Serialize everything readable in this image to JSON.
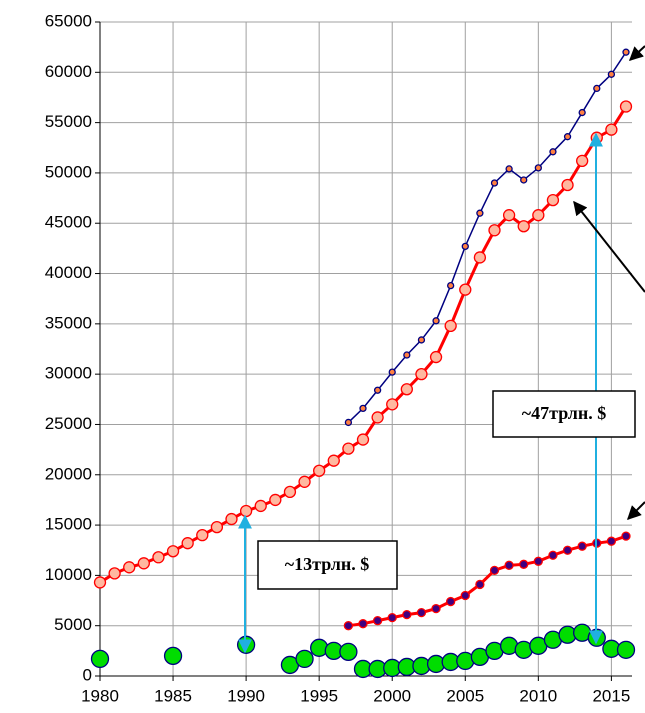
{
  "chart_data": {
    "type": "line",
    "xlim": [
      1980,
      2016
    ],
    "ylim": [
      0,
      65000
    ],
    "xticks": [
      1980,
      1985,
      1990,
      1995,
      2000,
      2005,
      2010,
      2015
    ],
    "yticks": [
      0,
      5000,
      10000,
      15000,
      20000,
      25000,
      30000,
      35000,
      40000,
      45000,
      50000,
      55000,
      60000,
      65000
    ],
    "grid": true,
    "annotations": [
      "~13трлн. $",
      "~47трлн. $"
    ],
    "series": [
      {
        "color": "#ff0000",
        "marker_color": "#ffb8a0",
        "x": [
          1980,
          1981,
          1982,
          1983,
          1984,
          1985,
          1986,
          1987,
          1988,
          1989,
          1990,
          1991,
          1992,
          1993,
          1994,
          1995,
          1996,
          1997,
          1998,
          1999,
          2000,
          2001,
          2002,
          2003,
          2004,
          2005,
          2006,
          2007,
          2008,
          2009,
          2010,
          2011,
          2012,
          2013,
          2014,
          2015,
          2016
        ],
        "values": [
          9300,
          10200,
          10800,
          11200,
          11800,
          12400,
          13200,
          14000,
          14800,
          15600,
          16400,
          16900,
          17500,
          18300,
          19300,
          20400,
          21400,
          22600,
          23500,
          25700,
          27000,
          28500,
          30000,
          31700,
          34800,
          38400,
          41600,
          44300,
          45800,
          44700,
          45800,
          47300,
          48800,
          51200,
          53500,
          54300,
          56600
        ]
      },
      {
        "color": "#000080",
        "marker_color": "#ff8040",
        "x": [
          1997,
          1998,
          1999,
          2000,
          2001,
          2002,
          2003,
          2004,
          2005,
          2006,
          2007,
          2008,
          2009,
          2010,
          2011,
          2012,
          2013,
          2014,
          2015,
          2016
        ],
        "values": [
          25200,
          26600,
          28400,
          30200,
          31900,
          33400,
          35300,
          38800,
          42700,
          46000,
          49000,
          50400,
          49300,
          50500,
          52100,
          53600,
          56000,
          58400,
          59800,
          62000
        ]
      },
      {
        "color": "#ff0000",
        "marker_color": "#400080",
        "x": [
          1997,
          1998,
          1999,
          2000,
          2001,
          2002,
          2003,
          2004,
          2005,
          2006,
          2007,
          2008,
          2009,
          2010,
          2011,
          2012,
          2013,
          2014,
          2015,
          2016
        ],
        "values": [
          5000,
          5200,
          5500,
          5800,
          6100,
          6300,
          6700,
          7400,
          8000,
          9100,
          10500,
          11000,
          11100,
          11400,
          12000,
          12500,
          12900,
          13200,
          13400,
          13900
        ]
      },
      {
        "color": null,
        "marker_color": "#00dd00",
        "x": [
          1980,
          1985,
          1990,
          1993,
          1994,
          1995,
          1996,
          1997,
          1998,
          1999,
          2000,
          2001,
          2002,
          2003,
          2004,
          2005,
          2006,
          2007,
          2008,
          2009,
          2010,
          2011,
          2012,
          2013,
          2014,
          2015,
          2016
        ],
        "values": [
          1700,
          2000,
          3100,
          1100,
          1700,
          2800,
          2500,
          2400,
          700,
          700,
          800,
          900,
          1000,
          1200,
          1400,
          1500,
          1900,
          2500,
          3000,
          2600,
          3000,
          3600,
          4100,
          4300,
          3800,
          2700,
          2600
        ]
      }
    ]
  }
}
